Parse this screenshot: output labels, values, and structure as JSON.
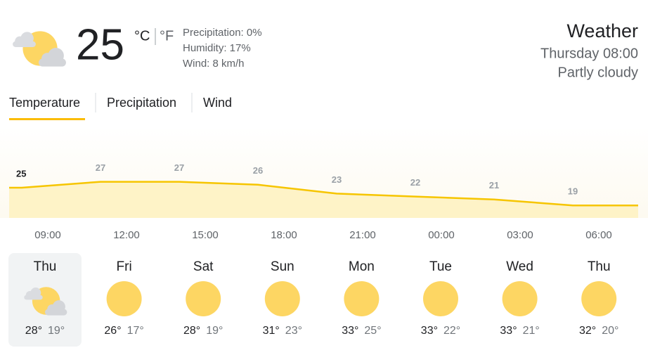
{
  "current": {
    "temperature": "25",
    "unit_c": "°C",
    "unit_f": "°F",
    "details": [
      "Precipitation: 0%",
      "Humidity: 17%",
      "Wind: 8 km/h"
    ]
  },
  "header": {
    "title": "Weather",
    "time": "Thursday 08:00",
    "condition": "Partly cloudy"
  },
  "tabs": [
    "Temperature",
    "Precipitation",
    "Wind"
  ],
  "hourly": {
    "times": [
      "09:00",
      "12:00",
      "15:00",
      "18:00",
      "21:00",
      "00:00",
      "03:00",
      "06:00"
    ],
    "values": [
      25,
      27,
      27,
      26,
      23,
      22,
      21,
      19
    ]
  },
  "forecast": [
    {
      "day": "Thu",
      "high": "28°",
      "low": "19°"
    },
    {
      "day": "Fri",
      "high": "26°",
      "low": "17°"
    },
    {
      "day": "Sat",
      "high": "28°",
      "low": "19°"
    },
    {
      "day": "Sun",
      "high": "31°",
      "low": "23°"
    },
    {
      "day": "Mon",
      "high": "33°",
      "low": "25°"
    },
    {
      "day": "Tue",
      "high": "33°",
      "low": "22°"
    },
    {
      "day": "Wed",
      "high": "33°",
      "low": "21°"
    },
    {
      "day": "Thu",
      "high": "32°",
      "low": "20°"
    }
  ]
}
